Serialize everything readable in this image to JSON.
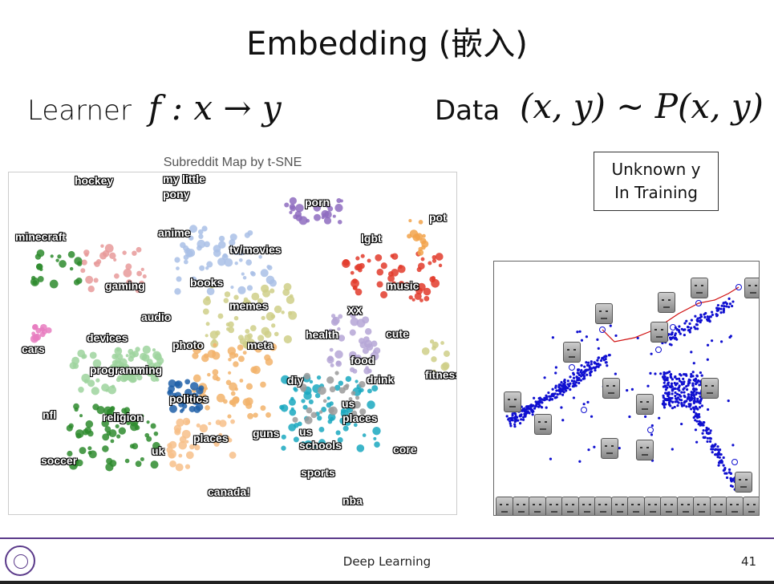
{
  "slide": {
    "title": "Embedding (嵌入)",
    "learner_label": "Learner",
    "learner_formula": "f : x → y",
    "data_label": "Data",
    "data_formula": "(x, y) ~ P(x, y)",
    "unknown_line1": "Unknown y",
    "unknown_line2": "In Training"
  },
  "map": {
    "title": "Subreddit Map by t-SNE",
    "labels": [
      "hockey",
      "my little",
      "pony",
      "porn",
      "pot",
      "minecraft",
      "anime",
      "lgbt",
      "tv/movies",
      "music",
      "gaming",
      "books",
      "memes",
      "XX",
      "audio",
      "cute",
      "health",
      "devices",
      "photo",
      "meta",
      "food",
      "cars",
      "fitness",
      "drink",
      "programming",
      "diy",
      "politics",
      "us",
      "places",
      "nfl",
      "religion",
      "guns",
      "us",
      "schools",
      "core",
      "uk",
      "places",
      "soccer",
      "sports",
      "canada!",
      "nba"
    ]
  },
  "footer": {
    "course": "Deep Learning",
    "page": "41"
  }
}
